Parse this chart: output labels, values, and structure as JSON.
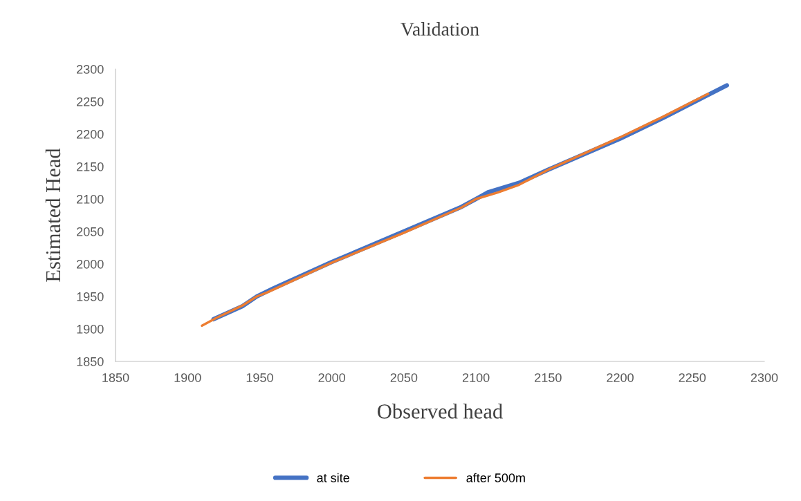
{
  "chart_data": {
    "type": "line",
    "title": "Validation",
    "xlabel": "Observed head",
    "ylabel": "Estimated Head",
    "xlim": [
      1850,
      2300
    ],
    "xticks": [
      1850,
      1900,
      1950,
      2000,
      2050,
      2100,
      2150,
      2200,
      2250,
      2300
    ],
    "ylim": [
      1850,
      2300
    ],
    "yticks": [
      1850,
      1900,
      1950,
      2000,
      2050,
      2100,
      2150,
      2200,
      2250,
      2300
    ],
    "grid": false,
    "legend": "bottom",
    "marker": "none",
    "line_style": "solid",
    "series": [
      {
        "name": "at site",
        "color": "#4472c4",
        "x": [
          1918,
          1938,
          1948,
          1960,
          2000,
          2050,
          2090,
          2100,
          2108,
          2130,
          2150,
          2200,
          2230,
          2274
        ],
        "values": [
          1915,
          1935,
          1950,
          1963,
          2003,
          2050,
          2088,
          2100,
          2110,
          2125,
          2145,
          2193,
          2225,
          2275
        ]
      },
      {
        "name": "after 500m",
        "color": "#ed7d31",
        "x": [
          1910,
          1920,
          1938,
          1948,
          1955,
          2000,
          2050,
          2090,
          2100,
          2115,
          2130,
          2150,
          2200,
          2230,
          2261
        ],
        "values": [
          1905,
          1917,
          1936,
          1950,
          1956,
          2002,
          2048,
          2087,
          2100,
          2110,
          2122,
          2145,
          2195,
          2227,
          2262
        ]
      }
    ]
  }
}
